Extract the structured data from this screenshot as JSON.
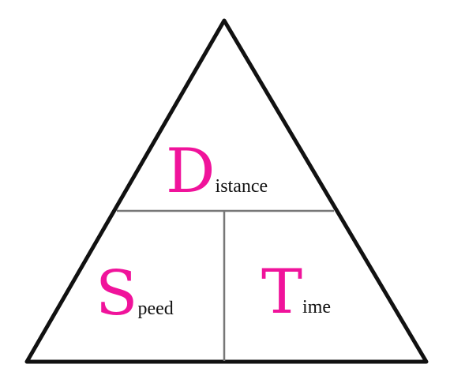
{
  "diagram": {
    "title": "Distance Speed Time triangle",
    "colors": {
      "outline": "#111111",
      "divider": "#777777",
      "accent": "#f0139b",
      "text": "#111111",
      "background": "#ffffff"
    },
    "top": {
      "initial": "D",
      "rest": "istance"
    },
    "bottom_left": {
      "initial": "S",
      "rest": "peed"
    },
    "bottom_right": {
      "initial": "T",
      "rest": "ime"
    }
  }
}
